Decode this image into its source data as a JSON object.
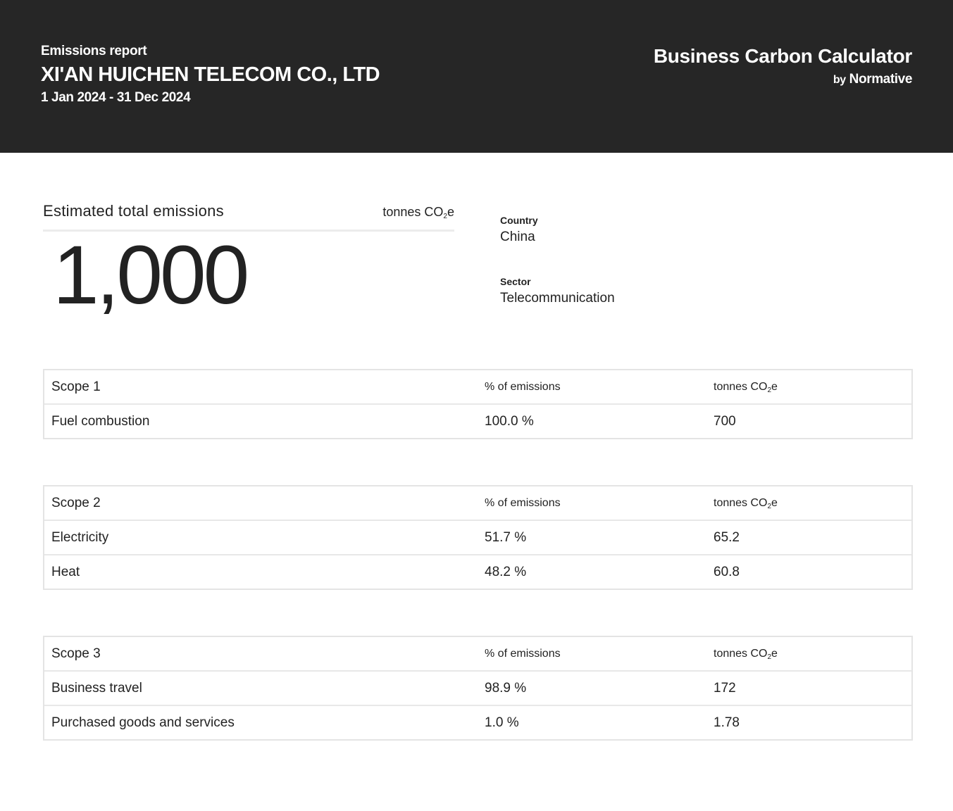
{
  "header": {
    "report_label": "Emissions report",
    "company_name": "XI'AN HUICHEN TELECOM CO., LTD",
    "period": "1 Jan 2024 - 31 Dec 2024",
    "brand_title": "Business Carbon Calculator",
    "brand_by": "by",
    "brand_name": "Normative"
  },
  "total": {
    "title": "Estimated total emissions",
    "unit_prefix": "tonnes CO",
    "unit_sub": "2",
    "unit_suffix": "e",
    "value": "1,000"
  },
  "meta": {
    "country_label": "Country",
    "country_value": "China",
    "sector_label": "Sector",
    "sector_value": "Telecommunication"
  },
  "columns": {
    "percent": "% of emissions",
    "tonnes_prefix": "tonnes CO",
    "tonnes_sub": "2",
    "tonnes_suffix": "e"
  },
  "scopes": [
    {
      "title": "Scope 1",
      "rows": [
        {
          "category": "Fuel combustion",
          "percent": "100.0 %",
          "tonnes": "700"
        }
      ]
    },
    {
      "title": "Scope 2",
      "rows": [
        {
          "category": "Electricity",
          "percent": "51.7 %",
          "tonnes": "65.2"
        },
        {
          "category": "Heat",
          "percent": "48.2 %",
          "tonnes": "60.8"
        }
      ]
    },
    {
      "title": "Scope 3",
      "rows": [
        {
          "category": "Business travel",
          "percent": "98.9 %",
          "tonnes": "172"
        },
        {
          "category": "Purchased goods and services",
          "percent": "1.0 %",
          "tonnes": "1.78"
        }
      ]
    }
  ]
}
